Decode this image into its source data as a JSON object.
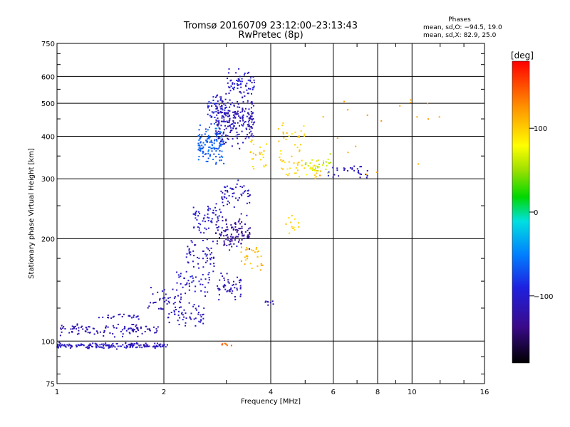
{
  "chart_data": {
    "type": "scatter",
    "title": "Tromsø 20160709 23:12:00–23:13:43",
    "subtitle": "RwPretec (8p)",
    "xlabel": "Frequency [MHz]",
    "ylabel": "Stationary phase Virtual Height [km]",
    "x_scale": "log",
    "y_scale": "log",
    "xlim": [
      1,
      16
    ],
    "ylim": [
      75,
      750
    ],
    "grid": true,
    "x_ticks": [
      {
        "value": 1,
        "label": "1"
      },
      {
        "value": 2,
        "label": "2"
      },
      {
        "value": 4,
        "label": "4"
      },
      {
        "value": 6,
        "label": "6"
      },
      {
        "value": 8,
        "label": "8"
      },
      {
        "value": 10,
        "label": "10"
      },
      {
        "value": 16,
        "label": "16"
      }
    ],
    "y_ticks": [
      {
        "value": 75,
        "label": "75"
      },
      {
        "value": 100,
        "label": "100"
      },
      {
        "value": 200,
        "label": "200"
      },
      {
        "value": 300,
        "label": "300"
      },
      {
        "value": 400,
        "label": "400"
      },
      {
        "value": 500,
        "label": "500"
      },
      {
        "value": 600,
        "label": "600"
      },
      {
        "value": 750,
        "label": "750"
      }
    ],
    "phase_stats": {
      "title": "Phases",
      "line_o": "mean, sd,O: −94.5, 19.0",
      "line_x": "mean, sd,X:  82.9, 25.0"
    },
    "colorbar": {
      "label": "[deg]",
      "min": -180,
      "max": 180,
      "ticks": [
        {
          "value": 100,
          "label": "100"
        },
        {
          "value": 0,
          "label": "0"
        },
        {
          "value": -100,
          "label": "−100"
        }
      ]
    },
    "clusters": [
      {
        "x_range": [
          1.0,
          2.05
        ],
        "y_center": 97,
        "y_spread": 0.012,
        "phase": -110,
        "count": 170
      },
      {
        "x_range": [
          1.02,
          1.95
        ],
        "y_center": 108,
        "y_spread": 0.025,
        "phase": -115,
        "count": 110
      },
      {
        "x_range": [
          1.3,
          1.7
        ],
        "y_center": 118,
        "y_spread": 0.012,
        "phase": -108,
        "count": 25
      },
      {
        "x_range": [
          1.8,
          2.25
        ],
        "y_center": 130,
        "y_spread": 0.06,
        "phase": -112,
        "count": 45
      },
      {
        "x_range": [
          2.0,
          2.6
        ],
        "y_center": 118,
        "y_spread": 0.05,
        "phase": -108,
        "count": 50
      },
      {
        "x_range": [
          2.15,
          2.7
        ],
        "y_center": 150,
        "y_spread": 0.06,
        "phase": -100,
        "count": 45
      },
      {
        "x_range": [
          2.3,
          2.8
        ],
        "y_center": 180,
        "y_spread": 0.06,
        "phase": -110,
        "count": 50
      },
      {
        "x_range": [
          2.4,
          2.95
        ],
        "y_center": 230,
        "y_spread": 0.07,
        "phase": -100,
        "count": 60
      },
      {
        "x_range": [
          2.5,
          2.95
        ],
        "y_center": 380,
        "y_spread": 0.08,
        "phase": -65,
        "count": 130
      },
      {
        "x_range": [
          2.65,
          3.0
        ],
        "y_center": 480,
        "y_spread": 0.07,
        "phase": -95,
        "count": 50
      },
      {
        "x_range": [
          2.8,
          3.6
        ],
        "y_center": 450,
        "y_spread": 0.1,
        "phase": -112,
        "count": 230
      },
      {
        "x_range": [
          3.0,
          3.6
        ],
        "y_center": 580,
        "y_spread": 0.05,
        "phase": -100,
        "count": 60
      },
      {
        "x_range": [
          2.8,
          3.5
        ],
        "y_center": 205,
        "y_spread": 0.07,
        "phase": -128,
        "count": 110
      },
      {
        "x_range": [
          2.8,
          3.3
        ],
        "y_center": 145,
        "y_spread": 0.05,
        "phase": -115,
        "count": 50
      },
      {
        "x_range": [
          2.9,
          3.5
        ],
        "y_center": 270,
        "y_spread": 0.05,
        "phase": -105,
        "count": 50
      },
      {
        "x_range": [
          3.3,
          3.8
        ],
        "y_center": 175,
        "y_spread": 0.06,
        "phase": 110,
        "count": 30
      },
      {
        "x_range": [
          3.5,
          3.9
        ],
        "y_center": 350,
        "y_spread": 0.09,
        "phase": 100,
        "count": 25
      },
      {
        "x_range": [
          4.2,
          5.0
        ],
        "y_center": 380,
        "y_spread": 0.1,
        "phase": 100,
        "count": 35
      },
      {
        "x_range": [
          4.3,
          5.5
        ],
        "y_center": 320,
        "y_spread": 0.04,
        "phase": 95,
        "count": 30
      },
      {
        "x_range": [
          5.0,
          6.0
        ],
        "y_center": 330,
        "y_spread": 0.04,
        "phase": 60,
        "count": 30
      },
      {
        "x_range": [
          5.8,
          7.5
        ],
        "y_center": 315,
        "y_spread": 0.03,
        "phase": -110,
        "count": 30
      },
      {
        "x_range": [
          4.4,
          4.8
        ],
        "y_center": 220,
        "y_spread": 0.05,
        "phase": 100,
        "count": 12
      },
      {
        "x_range": [
          3.8,
          4.1
        ],
        "y_center": 130,
        "y_spread": 0.01,
        "phase": -110,
        "count": 8
      },
      {
        "x_range": [
          2.9,
          3.2
        ],
        "y_center": 98,
        "y_spread": 0.01,
        "phase": 140,
        "count": 8
      },
      {
        "x_range": [
          5.5,
          12.0
        ],
        "y_center": 420,
        "y_spread": 0.2,
        "phase": 120,
        "count": 20
      }
    ]
  }
}
